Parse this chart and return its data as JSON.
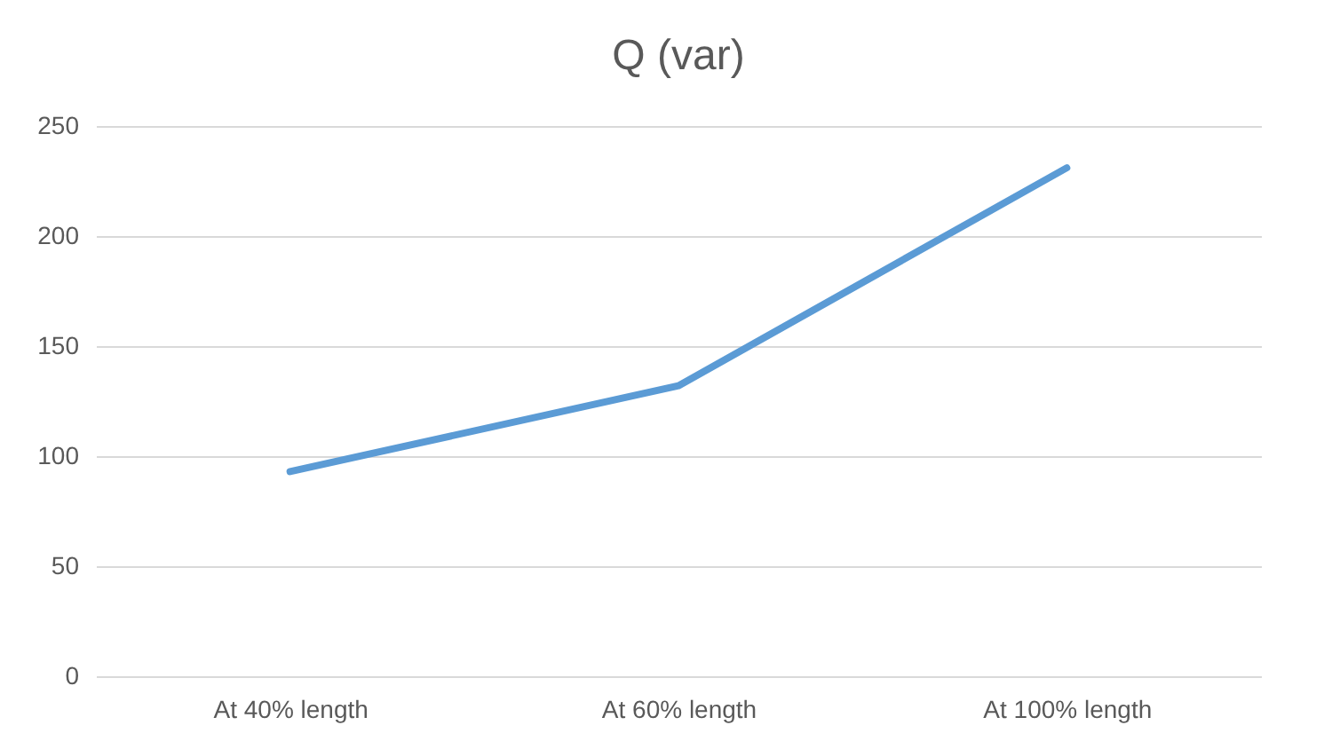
{
  "chart_data": {
    "type": "line",
    "title": "Q (var)",
    "categories": [
      "At 40% length",
      "At 60% length",
      "At 100% length"
    ],
    "series": [
      {
        "color": "#5b9bd5",
        "values": [
          93,
          132,
          231
        ]
      }
    ],
    "ylim": [
      0,
      250
    ],
    "yticks": [
      0,
      50,
      100,
      150,
      200,
      250
    ],
    "grid": "y",
    "marker": "none",
    "line_style": "solid"
  }
}
